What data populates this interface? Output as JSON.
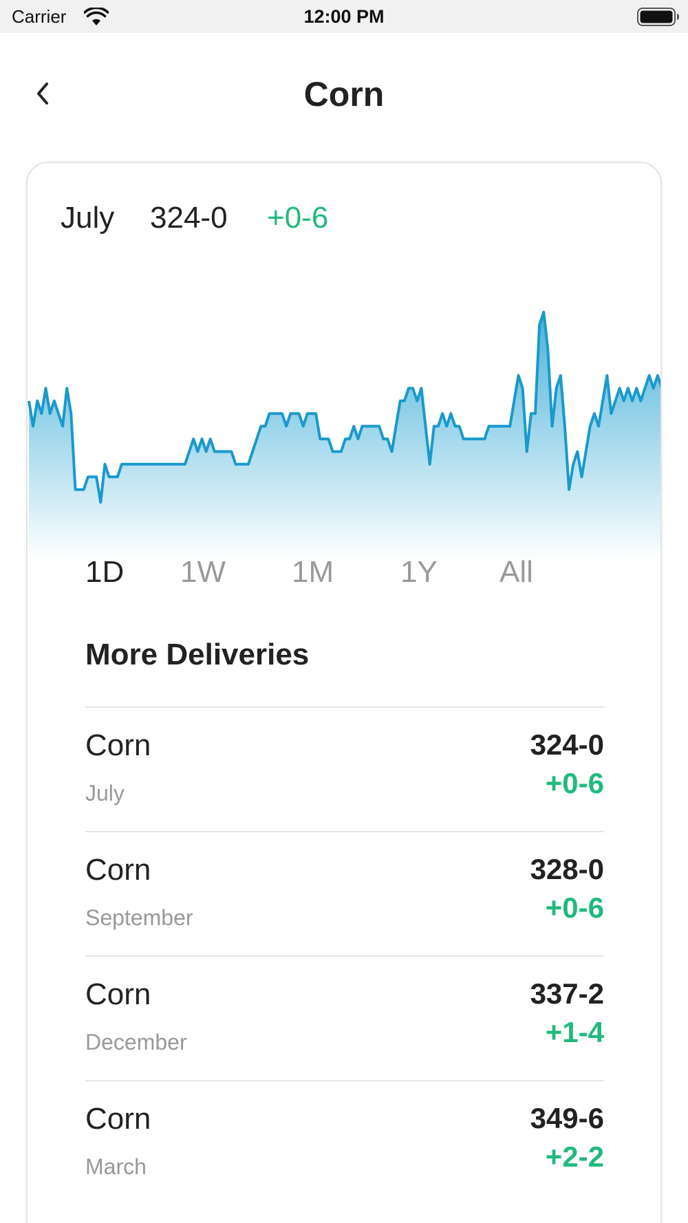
{
  "status_bar": {
    "carrier": "Carrier",
    "time": "12:00 PM",
    "icons": [
      "wifi-icon",
      "battery-icon"
    ]
  },
  "nav": {
    "back_icon": "chevron-left-icon",
    "title": "Corn"
  },
  "quote": {
    "month": "July",
    "price": "324-0",
    "change": "+0-6"
  },
  "colors": {
    "positive": "#1fba7d",
    "chart_line": "#1a99cc",
    "chart_fill_top": "#49b2d9",
    "chart_fill_bottom": "#ffffff",
    "inactive_text": "#9a9a9a"
  },
  "chart_data": {
    "type": "area",
    "title": "",
    "xlabel": "",
    "ylabel": "",
    "grid": false,
    "x": [
      0,
      1,
      2,
      3,
      4,
      5,
      6,
      7,
      8,
      9,
      10,
      11,
      12,
      13,
      14,
      15,
      16,
      17,
      18,
      19,
      20,
      21,
      22,
      23,
      24,
      25,
      26,
      27,
      28,
      29,
      30,
      31,
      32,
      33,
      34,
      35,
      36,
      37,
      38,
      39,
      40,
      41,
      42,
      43,
      44,
      45,
      46,
      47,
      48,
      49,
      50,
      51,
      52,
      53,
      54,
      55,
      56,
      57,
      58,
      59,
      60,
      61,
      62,
      63,
      64,
      65,
      66,
      67,
      68,
      69,
      70,
      71,
      72,
      73,
      74,
      75,
      76,
      77,
      78,
      79,
      80,
      81,
      82,
      83,
      84,
      85,
      86,
      87,
      88,
      89,
      90,
      91,
      92,
      93,
      94,
      95,
      96,
      97,
      98,
      99,
      100,
      101,
      102,
      103,
      104,
      105,
      106,
      107,
      108,
      109,
      110,
      111,
      112,
      113,
      114,
      115,
      116,
      117,
      118,
      119,
      120,
      121,
      122,
      123,
      124,
      125,
      126,
      127,
      128,
      129,
      130,
      131,
      132,
      133,
      134,
      135,
      136,
      137,
      138,
      139,
      140,
      141,
      142,
      143,
      144,
      145,
      146,
      147,
      148,
      149,
      150
    ],
    "values": [
      324,
      322,
      324,
      323,
      325,
      323,
      324,
      323,
      322,
      325,
      323,
      317,
      317,
      317,
      318,
      318,
      318,
      316,
      319,
      318,
      318,
      318,
      319,
      319,
      319,
      319,
      319,
      319,
      319,
      319,
      319,
      319,
      319,
      319,
      319,
      319,
      319,
      319,
      320,
      321,
      320,
      321,
      320,
      321,
      320,
      320,
      320,
      320,
      320,
      319,
      319,
      319,
      319,
      320,
      321,
      322,
      322,
      323,
      323,
      323,
      323,
      322,
      323,
      323,
      323,
      322,
      323,
      323,
      323,
      321,
      321,
      321,
      320,
      320,
      320,
      321,
      321,
      322,
      321,
      322,
      322,
      322,
      322,
      322,
      321,
      321,
      320,
      322,
      324,
      324,
      325,
      325,
      324,
      325,
      322,
      319,
      322,
      322,
      323,
      322,
      323,
      322,
      322,
      321,
      321,
      321,
      321,
      321,
      321,
      322,
      322,
      322,
      322,
      322,
      322,
      324,
      326,
      325,
      320,
      323,
      323,
      330,
      331,
      328,
      322,
      325,
      326,
      322,
      317,
      319,
      320,
      318,
      320,
      322,
      323,
      322,
      324,
      326,
      323,
      324,
      325,
      324,
      325,
      324,
      325,
      324,
      325,
      326,
      325,
      326,
      325
    ],
    "ylim": [
      314,
      333
    ],
    "series": [
      {
        "values_ref": "values"
      }
    ]
  },
  "ranges": {
    "items": [
      {
        "label": "1D",
        "active": true
      },
      {
        "label": "1W",
        "active": false
      },
      {
        "label": "1M",
        "active": false
      },
      {
        "label": "1Y",
        "active": false
      },
      {
        "label": "All",
        "active": false
      }
    ]
  },
  "deliveries": {
    "title": "More Deliveries",
    "items": [
      {
        "name": "Corn",
        "month": "July",
        "price": "324-0",
        "change": "+0-6"
      },
      {
        "name": "Corn",
        "month": "September",
        "price": "328-0",
        "change": "+0-6"
      },
      {
        "name": "Corn",
        "month": "December",
        "price": "337-2",
        "change": "+1-4"
      },
      {
        "name": "Corn",
        "month": "March",
        "price": "349-6",
        "change": "+2-2"
      }
    ]
  }
}
